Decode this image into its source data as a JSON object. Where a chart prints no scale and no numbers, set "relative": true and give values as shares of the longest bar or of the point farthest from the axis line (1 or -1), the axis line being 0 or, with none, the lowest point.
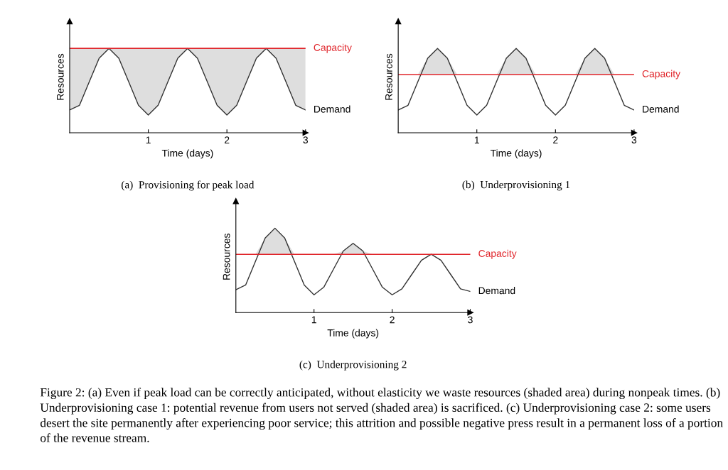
{
  "chart_data": [
    {
      "type": "line",
      "relative": true,
      "title": "(a)  Provisioning for peak load",
      "xlabel": "Time (days)",
      "ylabel": "Resources",
      "xlim": [
        0,
        3
      ],
      "xticks": [
        1,
        2,
        3
      ],
      "grid": false,
      "legend": false,
      "marker": "none",
      "line_style": "solid",
      "x": [
        0,
        0.125,
        0.25,
        0.375,
        0.5,
        0.625,
        0.75,
        0.875,
        1,
        1.125,
        1.25,
        1.375,
        1.5,
        1.625,
        1.75,
        1.875,
        2,
        2.125,
        2.25,
        2.375,
        2.5,
        2.625,
        2.75,
        2.875,
        3
      ],
      "series": [
        {
          "name": "Demand",
          "color": "#333333",
          "values": [
            0.27,
            0.326,
            0.605,
            0.884,
            1,
            0.884,
            0.605,
            0.326,
            0.21,
            0.326,
            0.605,
            0.884,
            1,
            0.884,
            0.605,
            0.326,
            0.21,
            0.326,
            0.605,
            0.884,
            1,
            0.884,
            0.605,
            0.326,
            0.27
          ],
          "lower": [
            0.27,
            0.326,
            0.605,
            0.884,
            1,
            0.884,
            0.605,
            0.326,
            0.21,
            0.326,
            0.605,
            0.884,
            1,
            0.884,
            0.605,
            0.326,
            0.21,
            0.326,
            0.605,
            0.884,
            1,
            0.884,
            0.605,
            0.326,
            0.27
          ],
          "upper": [
            1,
            1,
            1,
            1,
            1,
            1,
            1,
            1,
            1,
            1,
            1,
            1,
            1,
            1,
            1,
            1,
            1,
            1,
            1,
            1,
            1,
            1,
            1,
            1,
            1
          ]
        }
      ],
      "ref_lines": [
        {
          "axis": "y",
          "value": 1,
          "label": "Capacity",
          "color": "#e0242a"
        }
      ]
    },
    {
      "type": "line",
      "relative": true,
      "title": "(b)  Underprovisioning 1",
      "xlabel": "Time (days)",
      "ylabel": "Resources",
      "xlim": [
        0,
        3
      ],
      "xticks": [
        1,
        2,
        3
      ],
      "grid": false,
      "legend": false,
      "marker": "none",
      "line_style": "solid",
      "x": [
        0,
        0.125,
        0.25,
        0.375,
        0.5,
        0.625,
        0.75,
        0.875,
        1,
        1.125,
        1.25,
        1.375,
        1.5,
        1.625,
        1.75,
        1.875,
        2,
        2.125,
        2.25,
        2.375,
        2.5,
        2.625,
        2.75,
        2.875,
        3
      ],
      "series": [
        {
          "name": "Demand",
          "color": "#333333",
          "values": [
            0.27,
            0.326,
            0.605,
            0.884,
            1,
            0.884,
            0.605,
            0.326,
            0.21,
            0.326,
            0.605,
            0.884,
            1,
            0.884,
            0.605,
            0.326,
            0.21,
            0.326,
            0.605,
            0.884,
            1,
            0.884,
            0.605,
            0.326,
            0.27
          ],
          "lower": [
            0.69,
            0.69,
            0.69,
            0.69,
            0.69,
            0.69,
            0.69,
            0.69,
            0.69,
            0.69,
            0.69,
            0.69,
            0.69,
            0.69,
            0.69,
            0.69,
            0.69,
            0.69,
            0.69,
            0.69,
            0.69,
            0.69,
            0.69,
            0.69,
            0.69
          ],
          "upper": [
            0.69,
            0.69,
            0.69,
            0.884,
            1,
            0.884,
            0.69,
            0.69,
            0.69,
            0.69,
            0.69,
            0.884,
            1,
            0.884,
            0.69,
            0.69,
            0.69,
            0.69,
            0.69,
            0.884,
            1,
            0.884,
            0.69,
            0.69,
            0.69
          ]
        }
      ],
      "ref_lines": [
        {
          "axis": "y",
          "value": 0.69,
          "label": "Capacity",
          "color": "#e0242a"
        }
      ]
    },
    {
      "type": "line",
      "relative": true,
      "title": "(c)  Underprovisioning 2",
      "xlabel": "Time (days)",
      "ylabel": "Resources",
      "xlim": [
        0,
        3
      ],
      "xticks": [
        1,
        2,
        3
      ],
      "grid": false,
      "legend": false,
      "marker": "none",
      "line_style": "solid",
      "x": [
        0,
        0.125,
        0.25,
        0.375,
        0.5,
        0.625,
        0.75,
        0.875,
        1,
        1.125,
        1.25,
        1.375,
        1.5,
        1.625,
        1.75,
        1.875,
        2,
        2.125,
        2.25,
        2.375,
        2.5,
        2.625,
        2.75,
        2.875,
        3
      ],
      "series": [
        {
          "name": "Demand",
          "color": "#333333",
          "values": [
            0.27,
            0.326,
            0.605,
            0.884,
            1,
            0.884,
            0.605,
            0.326,
            0.21,
            0.3,
            0.515,
            0.73,
            0.82,
            0.73,
            0.515,
            0.3,
            0.21,
            0.28,
            0.45,
            0.62,
            0.69,
            0.62,
            0.45,
            0.28,
            0.25
          ],
          "lower": [
            0.69,
            0.69,
            0.69,
            0.69,
            0.69,
            0.69,
            0.69,
            0.69,
            0.69,
            0.69,
            0.69,
            0.69,
            0.69,
            0.69,
            0.69,
            0.69,
            0.69,
            0.69,
            0.69,
            0.69,
            0.69,
            0.69,
            0.69,
            0.69,
            0.69
          ],
          "upper": [
            0.69,
            0.69,
            0.69,
            0.884,
            1,
            0.884,
            0.69,
            0.69,
            0.69,
            0.69,
            0.69,
            0.73,
            0.82,
            0.73,
            0.69,
            0.69,
            0.69,
            0.69,
            0.69,
            0.69,
            0.69,
            0.69,
            0.69,
            0.69,
            0.69
          ]
        }
      ],
      "ref_lines": [
        {
          "axis": "y",
          "value": 0.69,
          "label": "Capacity",
          "color": "#e0242a"
        }
      ],
      "annotations": [
        "Figure 2: (a) Even if peak load can be correctly anticipated, without elasticity we waste resources (shaded area) during nonpeak times. (b) Underprovisioning case 1: potential revenue from users not served (shaded area) is sacrificed. (c) Underprovisioning case 2: some users desert the site permanently after experiencing poor service; this attrition and possible negative press result in a permanent loss of a portion of the revenue stream."
      ]
    }
  ]
}
